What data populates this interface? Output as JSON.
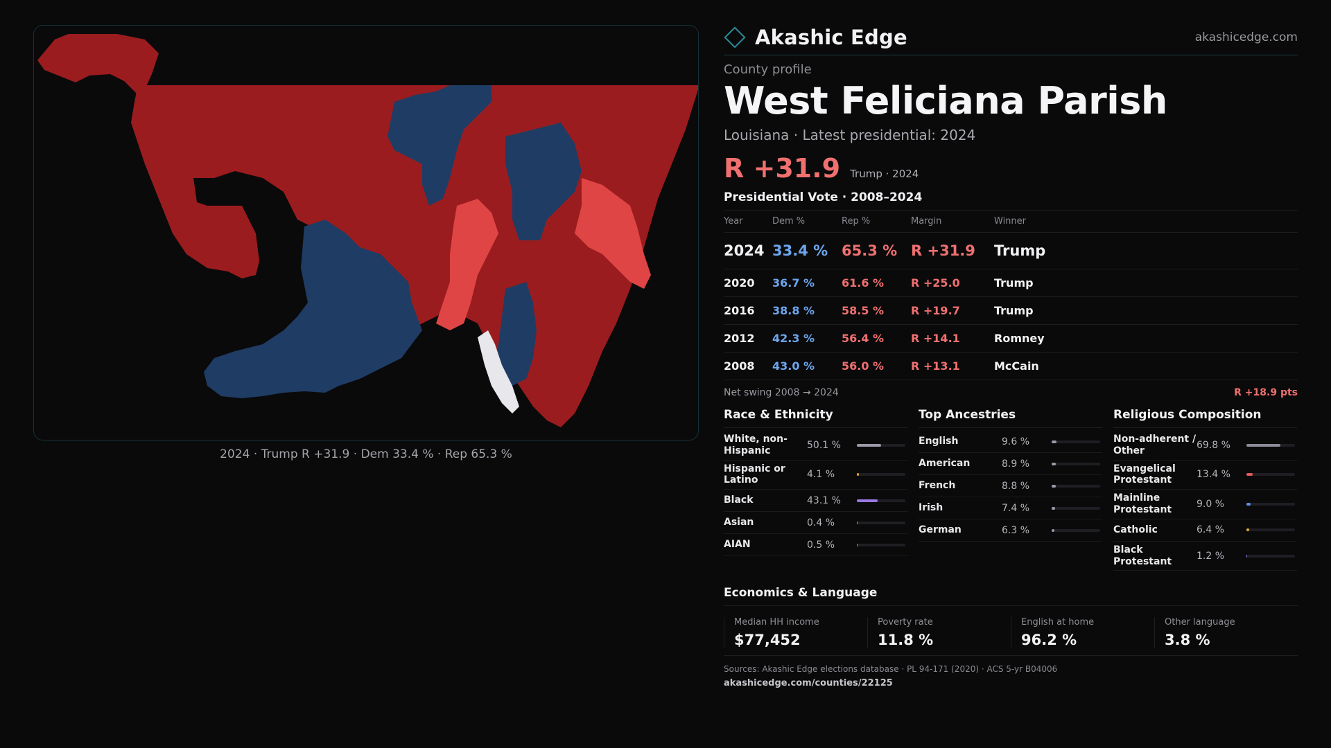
{
  "brand": {
    "name": "Akashic Edge",
    "site": "akashicedge.com",
    "icon": "diamond-icon",
    "accent": "#2b8c9a"
  },
  "profile": {
    "kicker": "County profile",
    "title": "West Feliciana Parish",
    "subtitle": "Louisiana · Latest presidential: 2024",
    "margin": "R +31.9",
    "margin_note": "Trump · 2024"
  },
  "map": {
    "caption": "2024 · Trump R +31.9 · Dem 33.4 % · Rep 65.3 %",
    "colors": {
      "strong_rep": "#9b1c1f",
      "lean_rep": "#e04545",
      "dem": "#1f3c64",
      "tie": "#e8e8ec"
    }
  },
  "votes": {
    "title": "Presidential Vote · 2008–2024",
    "headers": [
      "Year",
      "Dem %",
      "Rep %",
      "Margin",
      "Winner"
    ],
    "rows": [
      {
        "year": "2024",
        "dem": "33.4 %",
        "rep": "65.3 %",
        "margin": "R +31.9",
        "winner": "Trump"
      },
      {
        "year": "2020",
        "dem": "36.7 %",
        "rep": "61.6 %",
        "margin": "R +25.0",
        "winner": "Trump"
      },
      {
        "year": "2016",
        "dem": "38.8 %",
        "rep": "58.5 %",
        "margin": "R +19.7",
        "winner": "Trump"
      },
      {
        "year": "2012",
        "dem": "42.3 %",
        "rep": "56.4 %",
        "margin": "R +14.1",
        "winner": "Romney"
      },
      {
        "year": "2008",
        "dem": "43.0 %",
        "rep": "56.0 %",
        "margin": "R +13.1",
        "winner": "McCain"
      }
    ],
    "swing_label": "Net swing 2008 → 2024",
    "swing_value": "R +18.9 pts"
  },
  "race": {
    "title": "Race & Ethnicity",
    "items": [
      {
        "label": "White, non-Hispanic",
        "value": "50.1 %",
        "pct": 50.1,
        "color": "#9a9aa8"
      },
      {
        "label": "Hispanic or Latino",
        "value": "4.1 %",
        "pct": 4.1,
        "color": "#e0a030"
      },
      {
        "label": "Black",
        "value": "43.1 %",
        "pct": 43.1,
        "color": "#9a78e0"
      },
      {
        "label": "Asian",
        "value": "0.4 %",
        "pct": 0.4,
        "color": "#60c0a0"
      },
      {
        "label": "AIAN",
        "value": "0.5 %",
        "pct": 0.5,
        "color": "#d08050"
      }
    ]
  },
  "ancestry": {
    "title": "Top Ancestries",
    "items": [
      {
        "label": "English",
        "value": "9.6 %",
        "pct": 9.6,
        "color": "#9a9aa8"
      },
      {
        "label": "American",
        "value": "8.9 %",
        "pct": 8.9,
        "color": "#9a9aa8"
      },
      {
        "label": "French",
        "value": "8.8 %",
        "pct": 8.8,
        "color": "#9a9aa8"
      },
      {
        "label": "Irish",
        "value": "7.4 %",
        "pct": 7.4,
        "color": "#9a9aa8"
      },
      {
        "label": "German",
        "value": "6.3 %",
        "pct": 6.3,
        "color": "#9a9aa8"
      }
    ]
  },
  "religion": {
    "title": "Religious Composition",
    "items": [
      {
        "label": "Non-adherent / Other",
        "value": "69.8 %",
        "pct": 69.8,
        "color": "#8c8c98"
      },
      {
        "label": "Evangelical Protestant",
        "value": "13.4 %",
        "pct": 13.4,
        "color": "#e05a5a"
      },
      {
        "label": "Mainline Protestant",
        "value": "9.0 %",
        "pct": 9.0,
        "color": "#5a90e0"
      },
      {
        "label": "Catholic",
        "value": "6.4 %",
        "pct": 6.4,
        "color": "#e0b030"
      },
      {
        "label": "Black Protestant",
        "value": "1.2 %",
        "pct": 1.2,
        "color": "#9a78e0"
      }
    ]
  },
  "economics": {
    "title": "Economics & Language",
    "stats": [
      {
        "label": "Median HH income",
        "value": "$77,452"
      },
      {
        "label": "Poverty rate",
        "value": "11.8 %"
      },
      {
        "label": "English at home",
        "value": "96.2 %"
      },
      {
        "label": "Other language",
        "value": "3.8 %"
      }
    ]
  },
  "footer": {
    "sources": "Sources: Akashic Edge elections database · PL 94-171 (2020) · ACS 5-yr B04006",
    "url": "akashicedge.com/counties/22125"
  }
}
